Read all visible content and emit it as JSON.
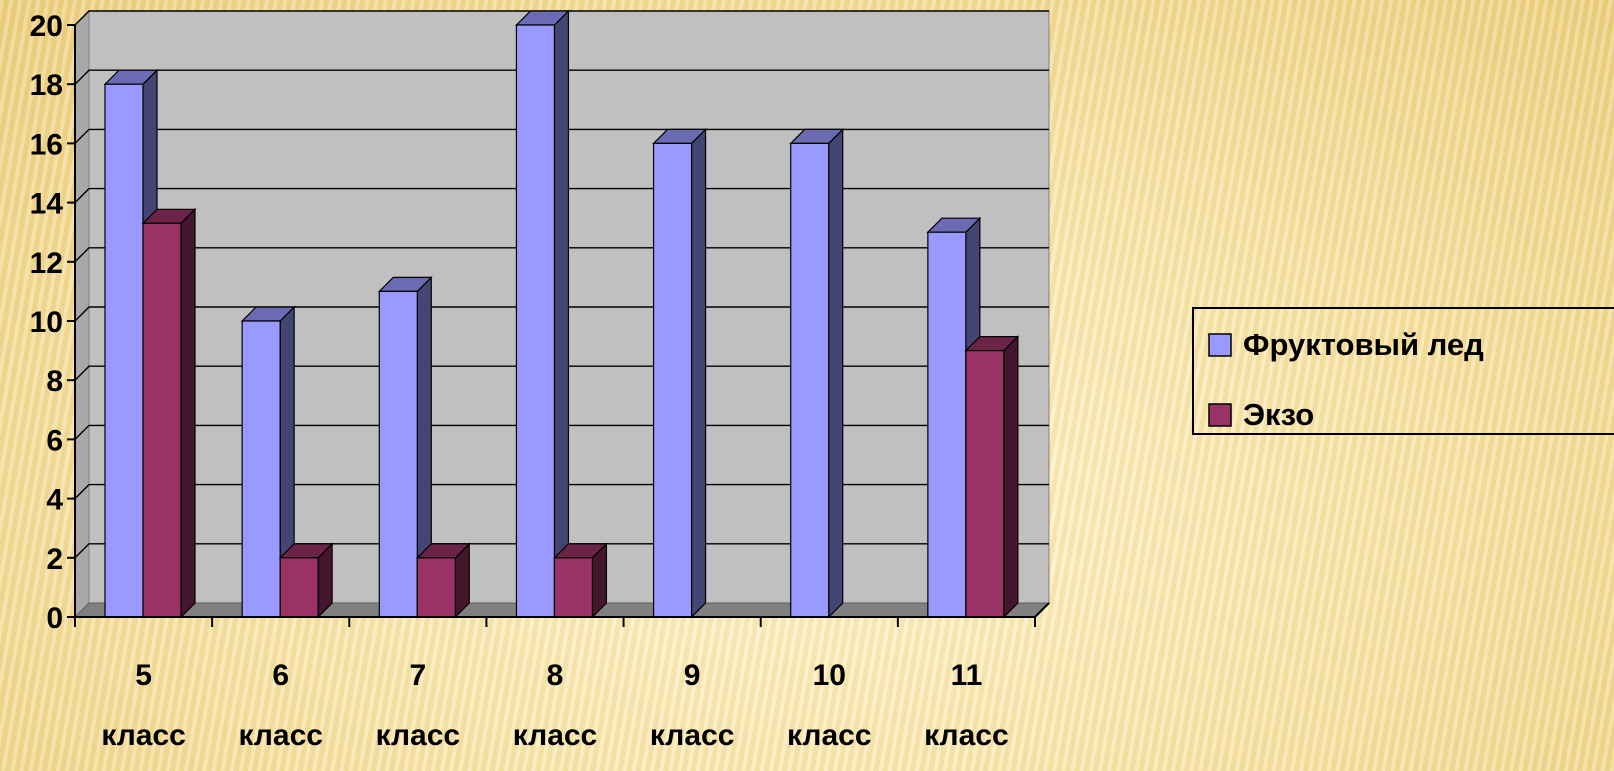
{
  "chart_data": {
    "type": "bar",
    "categories": [
      "5 класс",
      "6 класс",
      "7 класс",
      "8 класс",
      "9 класс",
      "10 класс",
      "11 класс"
    ],
    "category_lines": [
      [
        "5",
        "класс"
      ],
      [
        "6",
        "класс"
      ],
      [
        "7",
        "класс"
      ],
      [
        "8",
        "класс"
      ],
      [
        "9",
        "класс"
      ],
      [
        "10",
        "класс"
      ],
      [
        "11",
        "класс"
      ]
    ],
    "series": [
      {
        "name": "Фруктовый лед",
        "values": [
          18,
          10,
          11,
          20,
          16,
          16,
          13
        ],
        "color": "#9999ff"
      },
      {
        "name": "Экзо",
        "values": [
          13.3,
          2,
          2,
          2,
          0,
          0,
          9
        ],
        "color": "#993366"
      }
    ],
    "y_ticks": [
      "0",
      "2",
      "4",
      "6",
      "8",
      "10",
      "12",
      "14",
      "16",
      "18",
      "20"
    ],
    "ylim": [
      0,
      20
    ],
    "grid": true,
    "legend_position": "right",
    "plot_background": "#c0c0c0",
    "chart_style": "3d-clustered-column"
  }
}
